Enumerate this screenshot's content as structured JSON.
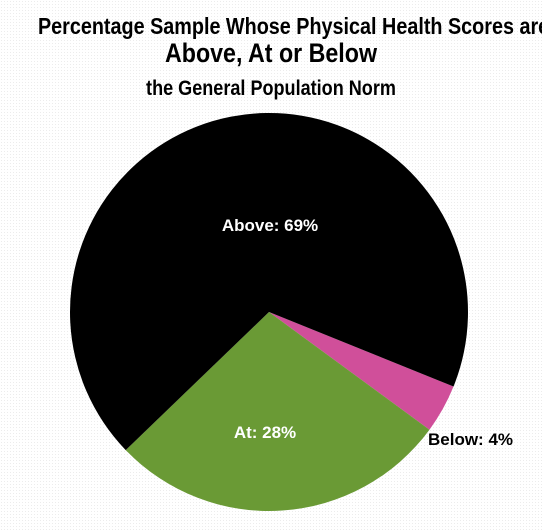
{
  "chart_data": {
    "type": "pie",
    "title_lines": [
      "Percentage Sample Whose Physical Health Scores are",
      "Above, At or Below",
      "the General Population Norm"
    ],
    "slices": [
      {
        "category": "Above",
        "value": 69,
        "label": "Above: 69%",
        "color": "#000000",
        "label_color": "#ffffff"
      },
      {
        "category": "At",
        "value": 28,
        "label": "At: 28%",
        "color": "#6a9a35",
        "label_color": "#ffffff"
      },
      {
        "category": "Below",
        "value": 4,
        "label": "Below: 4%",
        "color": "#d04f9a",
        "label_color": "#000000"
      }
    ],
    "legend": "none"
  }
}
